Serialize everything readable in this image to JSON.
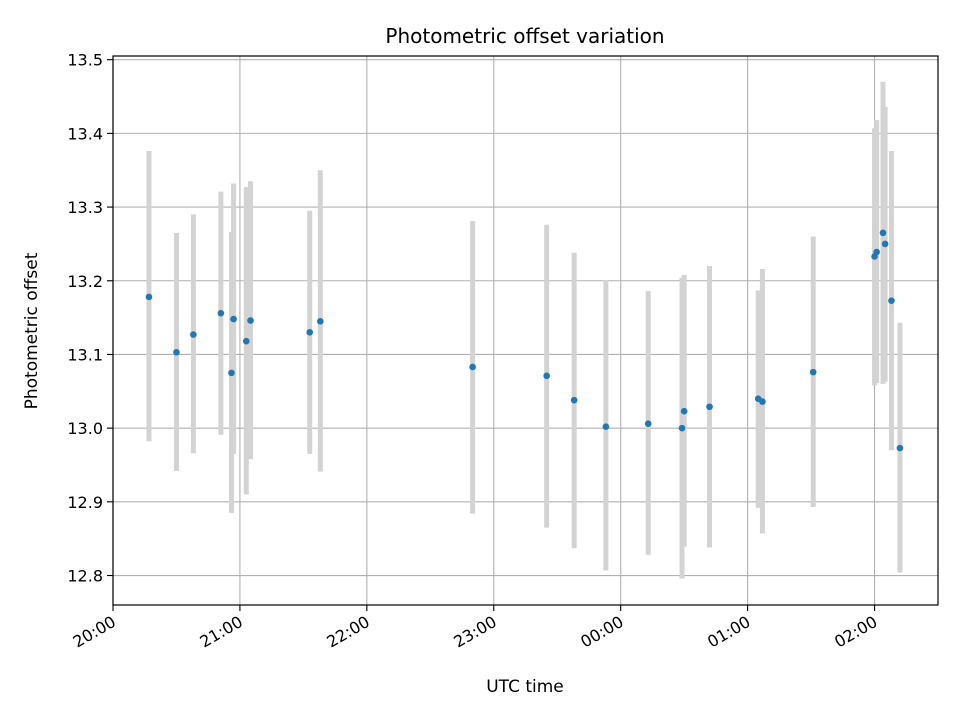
{
  "chart_data": {
    "type": "scatter",
    "title": "Photometric offset variation",
    "xlabel": "UTC time",
    "ylabel": "Photometric offset",
    "x_axis_kind": "time",
    "x_start_date": "",
    "xlim": [
      "20:00",
      "02:30"
    ],
    "ylim": [
      12.76,
      13.505
    ],
    "x_ticks": [
      "20:00",
      "21:00",
      "22:00",
      "23:00",
      "00:00",
      "01:00",
      "02:00"
    ],
    "y_ticks": [
      12.8,
      12.9,
      13.0,
      13.1,
      13.2,
      13.3,
      13.4,
      13.5
    ],
    "y_tick_labels": [
      "12.8",
      "12.9",
      "13.0",
      "13.1",
      "13.2",
      "13.3",
      "13.4",
      "13.5"
    ],
    "grid": true,
    "points": [
      {
        "x": "20:17",
        "y": 13.178,
        "lo": 12.982,
        "hi": 13.376
      },
      {
        "x": "20:30",
        "y": 13.103,
        "lo": 12.942,
        "hi": 13.265
      },
      {
        "x": "20:38",
        "y": 13.127,
        "lo": 12.966,
        "hi": 13.29
      },
      {
        "x": "20:51",
        "y": 13.156,
        "lo": 12.991,
        "hi": 13.321
      },
      {
        "x": "20:56",
        "y": 13.075,
        "lo": 12.885,
        "hi": 13.266
      },
      {
        "x": "20:57",
        "y": 13.148,
        "lo": 12.965,
        "hi": 13.332
      },
      {
        "x": "21:03",
        "y": 13.118,
        "lo": 12.91,
        "hi": 13.327
      },
      {
        "x": "21:05",
        "y": 13.146,
        "lo": 12.958,
        "hi": 13.335
      },
      {
        "x": "21:33",
        "y": 13.13,
        "lo": 12.965,
        "hi": 13.295
      },
      {
        "x": "21:38",
        "y": 13.145,
        "lo": 12.941,
        "hi": 13.35
      },
      {
        "x": "22:50",
        "y": 13.083,
        "lo": 12.884,
        "hi": 13.281
      },
      {
        "x": "23:25",
        "y": 13.071,
        "lo": 12.865,
        "hi": 13.276
      },
      {
        "x": "23:38",
        "y": 13.038,
        "lo": 12.837,
        "hi": 13.238
      },
      {
        "x": "23:53",
        "y": 13.002,
        "lo": 12.807,
        "hi": 13.201
      },
      {
        "x": "00:13",
        "y": 13.006,
        "lo": 12.828,
        "hi": 13.186
      },
      {
        "x": "00:29",
        "y": 13.0,
        "lo": 12.796,
        "hi": 13.204
      },
      {
        "x": "00:30",
        "y": 13.023,
        "lo": 12.839,
        "hi": 13.208
      },
      {
        "x": "00:42",
        "y": 13.029,
        "lo": 12.838,
        "hi": 13.22
      },
      {
        "x": "01:05",
        "y": 13.04,
        "lo": 12.892,
        "hi": 13.187
      },
      {
        "x": "01:07",
        "y": 13.036,
        "lo": 12.857,
        "hi": 13.216
      },
      {
        "x": "01:31",
        "y": 13.076,
        "lo": 12.893,
        "hi": 13.26
      },
      {
        "x": "02:00",
        "y": 13.233,
        "lo": 13.058,
        "hi": 13.407
      },
      {
        "x": "02:01",
        "y": 13.239,
        "lo": 13.061,
        "hi": 13.418
      },
      {
        "x": "02:04",
        "y": 13.265,
        "lo": 13.06,
        "hi": 13.47
      },
      {
        "x": "02:05",
        "y": 13.25,
        "lo": 13.063,
        "hi": 13.436
      },
      {
        "x": "02:08",
        "y": 13.173,
        "lo": 12.97,
        "hi": 13.376
      },
      {
        "x": "02:12",
        "y": 12.973,
        "lo": 12.804,
        "hi": 13.143
      }
    ],
    "point_color": "#1f77b4",
    "errorbar_color": "#d3d3d3",
    "grid_color": "#b0b0b0"
  }
}
